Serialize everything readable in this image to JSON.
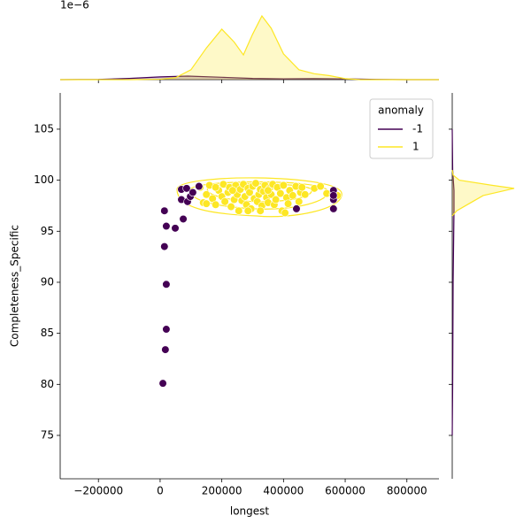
{
  "chart_data": [
    {
      "type": "scatter",
      "xlabel": "longest",
      "ylabel": "Completeness_Specific",
      "xlim": [
        -324000,
        904000
      ],
      "ylim": [
        70.75,
        108.55
      ],
      "xticks": [
        {
          "value": -200000,
          "label": "−200000"
        },
        0,
        200000,
        400000,
        600000,
        800000
      ],
      "yticks": [
        75,
        80,
        85,
        90,
        95,
        100,
        105
      ],
      "legend_title": "anomaly",
      "legend_loc": "upper right",
      "series": [
        {
          "name": "-1",
          "color": "#440154",
          "x": [
            14000,
            20000,
            49000,
            75000,
            14000,
            20000,
            20000,
            17000,
            9000,
            69000,
            86000,
            69000,
            89000,
            98000,
            106000,
            126000,
            442000,
            562000,
            562000,
            562000,
            562000
          ],
          "y": [
            97.0,
            95.5,
            95.3,
            96.2,
            93.5,
            89.8,
            85.4,
            83.4,
            80.1,
            99.1,
            99.2,
            98.1,
            97.9,
            98.4,
            98.8,
            99.4,
            97.2,
            99.0,
            98.1,
            97.2,
            98.5
          ]
        },
        {
          "name": "1",
          "color": "#fde725",
          "x": [
            130000,
            140000,
            150000,
            160000,
            170000,
            180000,
            190000,
            200000,
            205000,
            210000,
            220000,
            225000,
            230000,
            240000,
            245000,
            250000,
            255000,
            260000,
            265000,
            270000,
            275000,
            280000,
            285000,
            290000,
            295000,
            300000,
            305000,
            310000,
            315000,
            320000,
            325000,
            330000,
            335000,
            340000,
            345000,
            350000,
            355000,
            360000,
            365000,
            370000,
            375000,
            380000,
            390000,
            395000,
            400000,
            410000,
            415000,
            420000,
            430000,
            440000,
            450000,
            455000,
            460000,
            470000,
            500000,
            520000,
            540000,
            560000,
            575000,
            150000,
            235000,
            285000,
            325000,
            405000,
            180000,
            350000
          ],
          "y": [
            99.3,
            97.8,
            98.6,
            99.5,
            98.2,
            97.6,
            99.0,
            98.4,
            99.6,
            97.9,
            98.8,
            99.3,
            97.4,
            98.1,
            99.5,
            98.6,
            97.0,
            99.1,
            98.0,
            99.6,
            98.4,
            97.6,
            99.2,
            98.8,
            97.2,
            99.4,
            98.2,
            99.7,
            97.9,
            98.6,
            99.1,
            97.5,
            98.9,
            99.5,
            98.3,
            97.8,
            99.2,
            98.6,
            99.6,
            97.6,
            98.1,
            99.3,
            98.7,
            97.0,
            99.5,
            98.3,
            97.7,
            99.0,
            98.5,
            99.4,
            97.9,
            98.8,
            99.3,
            98.6,
            99.2,
            99.4,
            98.7,
            98.6,
            98.5,
            97.7,
            99.0,
            97.0,
            97.0,
            96.8,
            99.3,
            99.0
          ]
        }
      ]
    },
    {
      "type": "kde-top",
      "offset_label": "1e−6",
      "xlim": [
        -324000,
        904000
      ],
      "ylim": [
        0,
        3.8
      ],
      "series": [
        {
          "color": "#440154",
          "x": [
            -324000,
            -200000,
            -100000,
            0,
            90000,
            200000,
            300000,
            400000,
            500000,
            600000,
            700000,
            800000,
            904000
          ],
          "values": [
            0,
            0.01,
            0.06,
            0.14,
            0.18,
            0.12,
            0.06,
            0.04,
            0.05,
            0.04,
            0.01,
            0,
            0
          ]
        },
        {
          "color": "#fde725",
          "x": [
            -324000,
            -100000,
            0,
            50000,
            100000,
            150000,
            200000,
            240000,
            270000,
            300000,
            330000,
            360000,
            400000,
            450000,
            500000,
            550000,
            600000,
            650000,
            904000
          ],
          "values": [
            0,
            0,
            0.02,
            0.1,
            0.5,
            1.6,
            2.55,
            1.9,
            1.25,
            2.3,
            3.22,
            2.6,
            1.3,
            0.5,
            0.3,
            0.2,
            0.05,
            0,
            0
          ]
        }
      ]
    },
    {
      "type": "kde-right",
      "xlim": [
        0,
        0.8
      ],
      "ylim": [
        70.75,
        108.55
      ],
      "series": [
        {
          "color": "#440154",
          "y": [
            75,
            80,
            90,
            97,
            99,
            101,
            105
          ],
          "values": [
            0,
            0.005,
            0.01,
            0.02,
            0.02,
            0.005,
            0
          ]
        },
        {
          "color": "#fde725",
          "y": [
            96.5,
            97,
            97.5,
            98,
            98.5,
            99,
            99.2,
            99.5,
            100,
            100.5,
            101
          ],
          "values": [
            0,
            0.05,
            0.15,
            0.25,
            0.35,
            0.6,
            0.7,
            0.45,
            0.08,
            0.01,
            0
          ]
        }
      ]
    }
  ]
}
